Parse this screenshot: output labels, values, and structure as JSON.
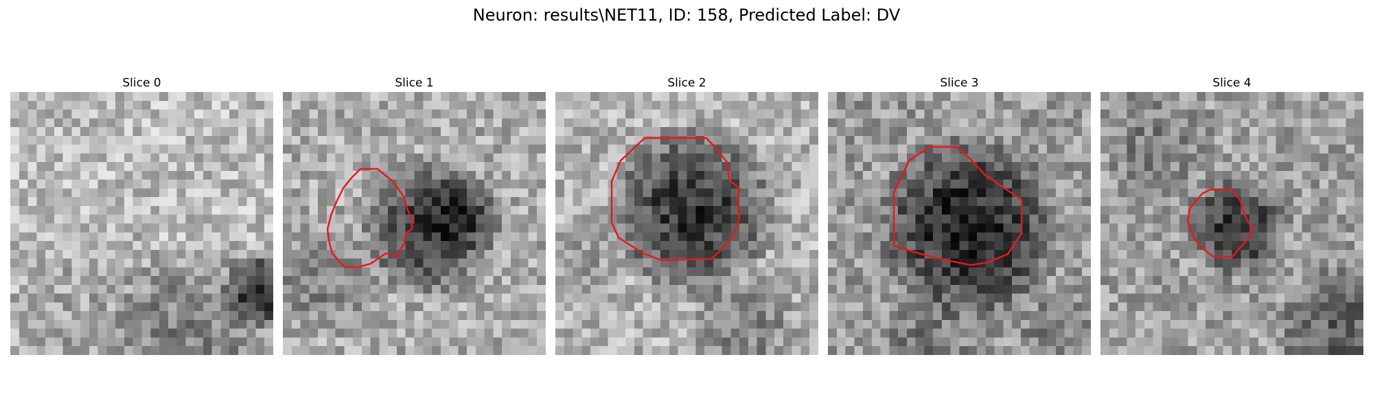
{
  "figure": {
    "title": "Neuron: results\\NET11, ID: 158, Predicted Label: DV"
  },
  "panels": [
    {
      "title": "Slice 0",
      "has_contour": false
    },
    {
      "title": "Slice 1",
      "has_contour": true
    },
    {
      "title": "Slice 2",
      "has_contour": true
    },
    {
      "title": "Slice 3",
      "has_contour": true
    },
    {
      "title": "Slice 4",
      "has_contour": true
    }
  ],
  "colors": {
    "contour": "#e41a1c",
    "background": "#ffffff",
    "colormap": "gray"
  }
}
